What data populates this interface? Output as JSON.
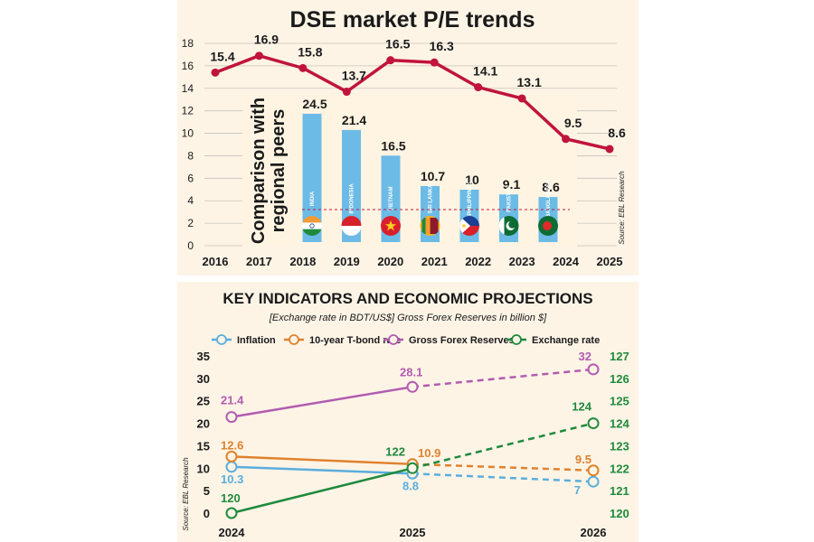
{
  "chart_data": [
    {
      "type": "line",
      "title": "DSE market P/E trends",
      "categories": [
        "2016",
        "2017",
        "2018",
        "2019",
        "2020",
        "2021",
        "2022",
        "2023",
        "2024",
        "2025"
      ],
      "values": [
        15.4,
        16.9,
        15.8,
        13.7,
        16.5,
        16.3,
        14.1,
        13.1,
        9.5,
        8.6
      ],
      "yticks": [
        "0",
        "2",
        "4",
        "6",
        "8",
        "10",
        "12",
        "14",
        "16",
        "18"
      ],
      "ylim": [
        0,
        18
      ],
      "line_color": "#c0143c",
      "source": "Source: EBL Research",
      "inset": {
        "type": "bar",
        "title": "Comparison with regional peers",
        "categories": [
          "INDIA",
          "INDONESIA",
          "VIETNAM",
          "SRI LANKA",
          "PHILIPPINES",
          "PAKISTAN",
          "BANGLADESH"
        ],
        "values": [
          24.5,
          21.4,
          16.5,
          10.7,
          10,
          9.1,
          8.6
        ],
        "value_labels": [
          "24.5",
          "21.4",
          "16.5",
          "10.7",
          "10",
          "9.1",
          "8.6"
        ],
        "bar_color": "#6bbbe6"
      }
    },
    {
      "type": "line",
      "title": "KEY INDICATORS AND ECONOMIC PROJECTIONS",
      "subtitle": "[Exchange rate in BDT/US$] Gross Forex Reserves in billion $]",
      "categories": [
        "2024",
        "2025",
        "2026"
      ],
      "ylim": [
        0,
        35
      ],
      "yticks": [
        "0",
        "5",
        "10",
        "15",
        "20",
        "25",
        "30",
        "35"
      ],
      "y2lim": [
        120,
        127
      ],
      "y2ticks": [
        "120",
        "121",
        "122",
        "123",
        "124",
        "125",
        "126",
        "127"
      ],
      "source": "Source: EBL Research",
      "series": [
        {
          "name": "Inflation",
          "values": [
            10.3,
            8.8,
            7
          ],
          "labels": [
            "10.3",
            "8.8",
            "7"
          ],
          "color": "#5aaedc",
          "axis": "left"
        },
        {
          "name": "10-year T-bond rate",
          "values": [
            12.6,
            10.9,
            9.5
          ],
          "labels": [
            "12.6",
            "10.9",
            "9.5"
          ],
          "color": "#e0812b",
          "axis": "left"
        },
        {
          "name": "Gross Forex Reserves",
          "values": [
            21.4,
            28.1,
            32
          ],
          "labels": [
            "21.4",
            "28.1",
            "32"
          ],
          "color": "#b25bb0",
          "axis": "left"
        },
        {
          "name": "Exchange rate",
          "values": [
            120,
            122,
            124
          ],
          "labels": [
            "120",
            "122",
            "124"
          ],
          "color": "#1f8a3c",
          "axis": "right"
        }
      ]
    }
  ]
}
